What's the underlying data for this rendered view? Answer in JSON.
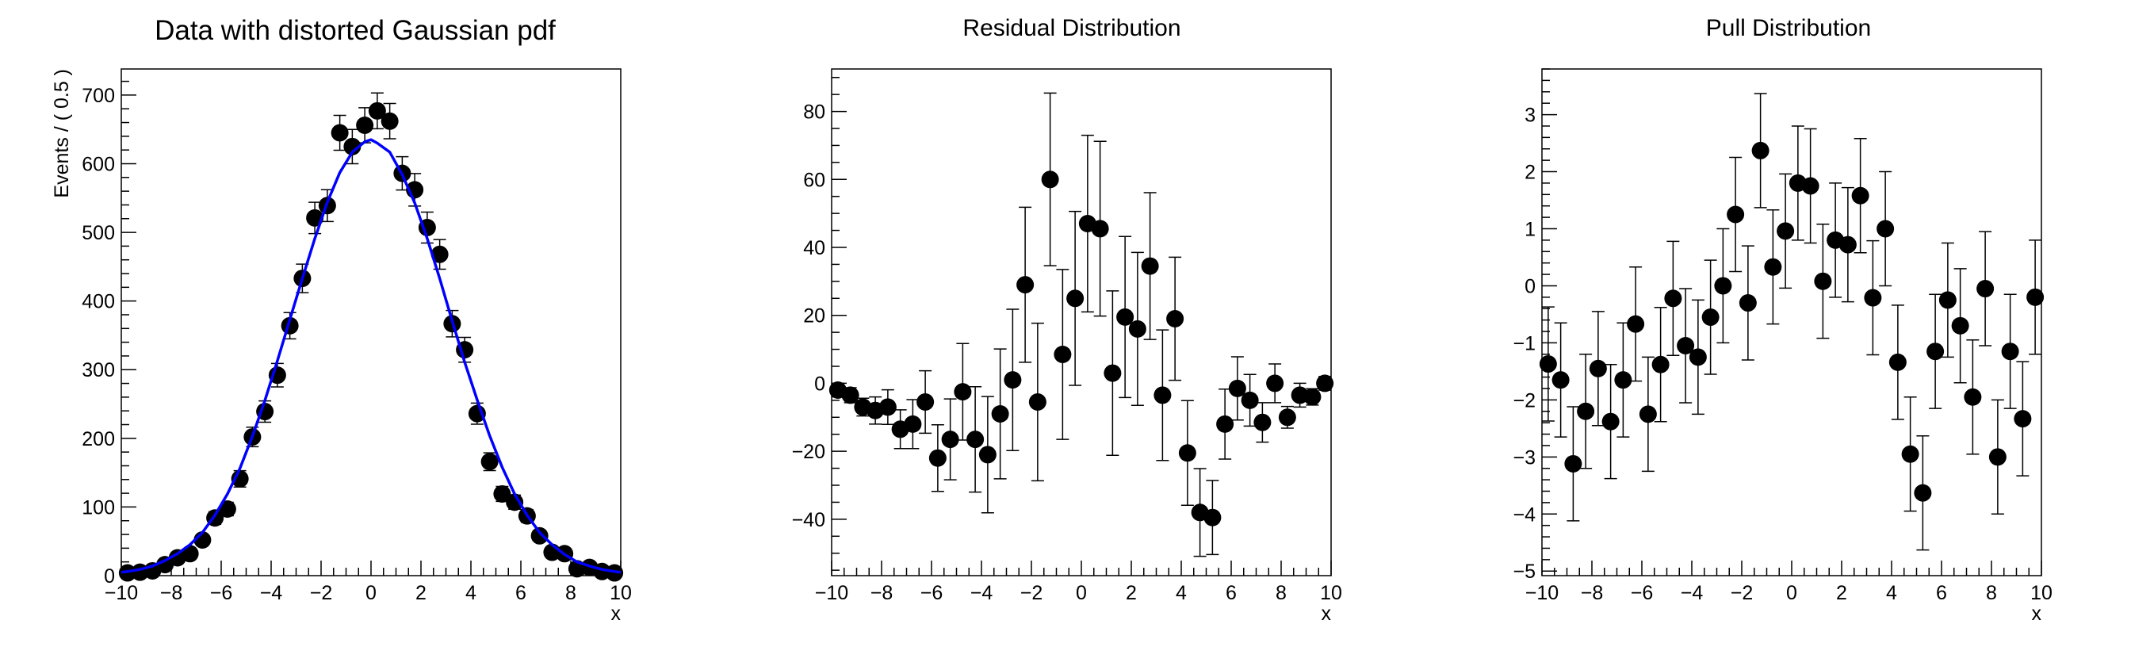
{
  "chart_data": [
    {
      "type": "scatter",
      "title": "Data with distorted Gaussian pdf",
      "xlabel": "x",
      "ylabel": "Events / ( 0.5 )",
      "xlim": [
        -10,
        10
      ],
      "ylim": [
        0,
        738
      ],
      "x_ticks": [
        "−10",
        "−8",
        "−6",
        "−4",
        "−2",
        "0",
        "2",
        "4",
        "6",
        "8",
        "10"
      ],
      "y_ticks": [
        "0",
        "100",
        "200",
        "300",
        "400",
        "500",
        "600",
        "700"
      ],
      "y_major": 100,
      "y_minor": 20,
      "grid": false,
      "x": [
        -9.75,
        -9.25,
        -8.75,
        -8.25,
        -7.75,
        -7.25,
        -6.75,
        -6.25,
        -5.75,
        -5.25,
        -4.75,
        -4.25,
        -3.75,
        -3.25,
        -2.75,
        -2.25,
        -1.75,
        -1.25,
        -0.75,
        -0.25,
        0.25,
        0.75,
        1.25,
        1.75,
        2.25,
        2.75,
        3.25,
        3.75,
        4.25,
        4.75,
        5.25,
        5.75,
        6.25,
        6.75,
        7.25,
        7.75,
        8.25,
        8.75,
        9.25,
        9.75
      ],
      "y": [
        4,
        5,
        7,
        16,
        26,
        32,
        52,
        84,
        97,
        141,
        202,
        239,
        292,
        364,
        433,
        521,
        539,
        645,
        625,
        656,
        677,
        662,
        586,
        562,
        507,
        468,
        367,
        329,
        236,
        166,
        119,
        107,
        87,
        58,
        34,
        32,
        10,
        12,
        6,
        4
      ],
      "yerr": [
        2,
        2.2,
        2.6,
        4,
        5.1,
        5.7,
        7.2,
        9.2,
        9.8,
        11.9,
        14.2,
        15.5,
        17.1,
        19.1,
        20.8,
        22.8,
        23.2,
        25.4,
        25,
        25.6,
        26,
        25.7,
        24.2,
        23.7,
        22.5,
        21.6,
        19.2,
        18.1,
        15.4,
        12.9,
        10.9,
        10.3,
        9.3,
        7.6,
        5.8,
        5.7,
        3.2,
        3.5,
        2.4,
        2
      ],
      "curve": {
        "color": "#0000ff",
        "x": [
          -10,
          -9.75,
          -9.25,
          -8.75,
          -8.25,
          -7.75,
          -7.25,
          -6.75,
          -6.25,
          -5.75,
          -5.25,
          -4.75,
          -4.25,
          -3.75,
          -3.25,
          -2.75,
          -2.25,
          -1.75,
          -1.25,
          -0.75,
          -0.25,
          0,
          0.25,
          0.75,
          1.25,
          1.75,
          2.25,
          2.75,
          3.25,
          3.75,
          4.25,
          4.75,
          5.25,
          5.75,
          6.25,
          6.75,
          7.25,
          7.75,
          8.25,
          8.75,
          9.25,
          9.75,
          10
        ],
        "y": [
          5,
          6,
          9,
          14,
          22,
          32,
          45,
          63,
          88,
          119,
          156,
          203,
          255,
          313,
          373,
          433,
          491,
          544,
          587,
          617,
          632,
          635,
          630,
          617,
          584,
          543,
          491,
          433,
          371,
          311,
          256,
          204,
          158,
          119,
          88,
          63,
          45,
          31,
          20,
          14,
          9,
          6,
          5
        ]
      },
      "marker_color": "#000000"
    },
    {
      "type": "scatter",
      "title": "Residual Distribution",
      "xlabel": "x",
      "xlim": [
        -10,
        10
      ],
      "ylim": [
        -56.6,
        92.5
      ],
      "x_ticks": [
        "−10",
        "−8",
        "−6",
        "−4",
        "−2",
        "0",
        "2",
        "4",
        "6",
        "8",
        "10"
      ],
      "y_ticks": [
        "−40",
        "−20",
        "0",
        "20",
        "40",
        "60",
        "80"
      ],
      "y_major": 20,
      "y_minor": 5,
      "grid": false,
      "x": [
        -9.75,
        -9.25,
        -8.75,
        -8.25,
        -7.75,
        -7.25,
        -6.75,
        -6.25,
        -5.75,
        -5.25,
        -4.75,
        -4.25,
        -3.75,
        -3.25,
        -2.75,
        -2.25,
        -1.75,
        -1.25,
        -0.75,
        -0.25,
        0.25,
        0.75,
        1.25,
        1.75,
        2.25,
        2.75,
        3.25,
        3.75,
        4.25,
        4.75,
        5.25,
        5.75,
        6.25,
        6.75,
        7.25,
        7.75,
        8.25,
        8.75,
        9.25,
        9.75
      ],
      "y": [
        -2,
        -3.5,
        -7,
        -8,
        -7,
        -13.5,
        -12,
        -5.5,
        -22,
        -16.5,
        -2.5,
        -16.5,
        -21,
        -9,
        1,
        29,
        -5.5,
        60,
        8.5,
        25,
        47,
        45.5,
        3,
        19.5,
        16,
        34.5,
        -3.5,
        19,
        -20.5,
        -38,
        -39.5,
        -12,
        -1.5,
        -5,
        -11.5,
        0,
        -10,
        -3.5,
        -4,
        0
      ],
      "yerr": [
        2,
        2.2,
        2.6,
        4,
        5.1,
        5.7,
        7.2,
        9.2,
        9.8,
        11.9,
        14.2,
        15.5,
        17.1,
        19.1,
        20.8,
        22.8,
        23.2,
        25.4,
        25,
        25.6,
        26,
        25.7,
        24.2,
        23.7,
        22.5,
        21.6,
        19.2,
        18.1,
        15.4,
        12.9,
        10.9,
        10.3,
        9.3,
        7.6,
        5.8,
        5.7,
        3.2,
        3.5,
        2.4,
        2
      ],
      "marker_color": "#000000"
    },
    {
      "type": "scatter",
      "title": "Pull Distribution",
      "xlabel": "x",
      "xlim": [
        -10,
        10
      ],
      "ylim": [
        -5.08,
        3.8
      ],
      "x_ticks": [
        "−10",
        "−8",
        "−6",
        "−4",
        "−2",
        "0",
        "2",
        "4",
        "6",
        "8",
        "10"
      ],
      "y_ticks": [
        "−5",
        "−4",
        "−3",
        "−2",
        "−1",
        "0",
        "1",
        "2",
        "3"
      ],
      "y_major": 1,
      "y_minor": 0.2,
      "grid": false,
      "x": [
        -9.75,
        -9.25,
        -8.75,
        -8.25,
        -7.75,
        -7.25,
        -6.75,
        -6.25,
        -5.75,
        -5.25,
        -4.75,
        -4.25,
        -3.75,
        -3.25,
        -2.75,
        -2.25,
        -1.75,
        -1.25,
        -0.75,
        -0.25,
        0.25,
        0.75,
        1.25,
        1.75,
        2.25,
        2.75,
        3.25,
        3.75,
        4.25,
        4.75,
        5.25,
        5.75,
        6.25,
        6.75,
        7.25,
        7.75,
        8.25,
        8.75,
        9.25,
        9.75
      ],
      "y": [
        -1.37,
        -1.65,
        -3.12,
        -2.2,
        -1.45,
        -2.38,
        -1.65,
        -0.67,
        -2.25,
        -1.38,
        -0.22,
        -1.05,
        -1.25,
        -0.55,
        0,
        1.25,
        -0.3,
        2.37,
        0.33,
        0.96,
        1.8,
        1.75,
        0.08,
        0.8,
        0.72,
        1.58,
        -0.21,
        1.0,
        -1.34,
        -2.95,
        -3.63,
        -1.15,
        -0.25,
        -0.7,
        -1.95,
        -0.05,
        -3.0,
        -1.15,
        -2.33,
        -0.2
      ],
      "yerr": [
        1,
        1,
        1,
        1,
        1,
        1,
        1,
        1,
        1,
        1,
        1,
        1,
        1,
        1,
        1,
        1,
        1,
        1,
        1,
        1,
        1,
        1,
        1,
        1,
        1,
        1,
        1,
        1,
        1,
        1,
        1,
        1,
        1,
        1,
        1,
        1,
        1,
        1,
        1,
        1
      ],
      "marker_color": "#000000"
    }
  ]
}
